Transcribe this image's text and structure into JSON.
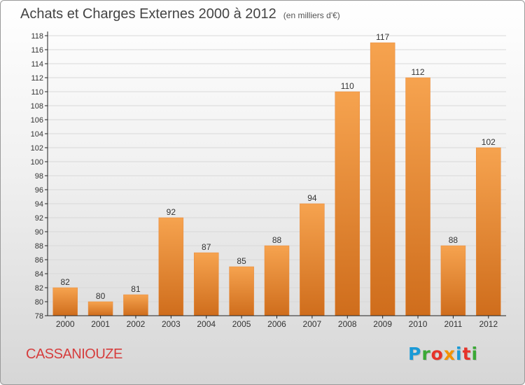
{
  "header": {
    "title": "Achats et Charges Externes 2000 à 2012",
    "unit": "(en milliers d'€)"
  },
  "footer": {
    "commune": "CASSANIOUZE",
    "brand": "Proxiti",
    "brand_colors": [
      "#1a9ad7",
      "#3aa935",
      "#e6332a",
      "#f39200",
      "#1a9ad7",
      "#e6332a",
      "#3aa935"
    ]
  },
  "colors": {
    "bar_top": "#f6a34f",
    "bar_bottom": "#cf6d1c",
    "grid": "#d8d8d8",
    "axis": "#222222",
    "label": "#333333"
  },
  "chart_data": {
    "type": "bar",
    "title": "Achats et Charges Externes 2000 à 2012",
    "subtitle": "(en milliers d'€)",
    "xlabel": "",
    "ylabel": "",
    "categories": [
      "2000",
      "2001",
      "2002",
      "2003",
      "2004",
      "2005",
      "2006",
      "2007",
      "2008",
      "2009",
      "2010",
      "2011",
      "2012"
    ],
    "values": [
      82,
      80,
      81,
      92,
      87,
      85,
      88,
      94,
      110,
      117,
      112,
      88,
      102
    ],
    "ylim": [
      78,
      118
    ],
    "yticks": [
      "78",
      "80",
      "82",
      "84",
      "86",
      "88",
      "90",
      "92",
      "94",
      "96",
      "98",
      "100",
      "102",
      "104",
      "106",
      "108",
      "110",
      "112",
      "114",
      "116",
      "118"
    ],
    "grid": true,
    "legend": "none"
  }
}
